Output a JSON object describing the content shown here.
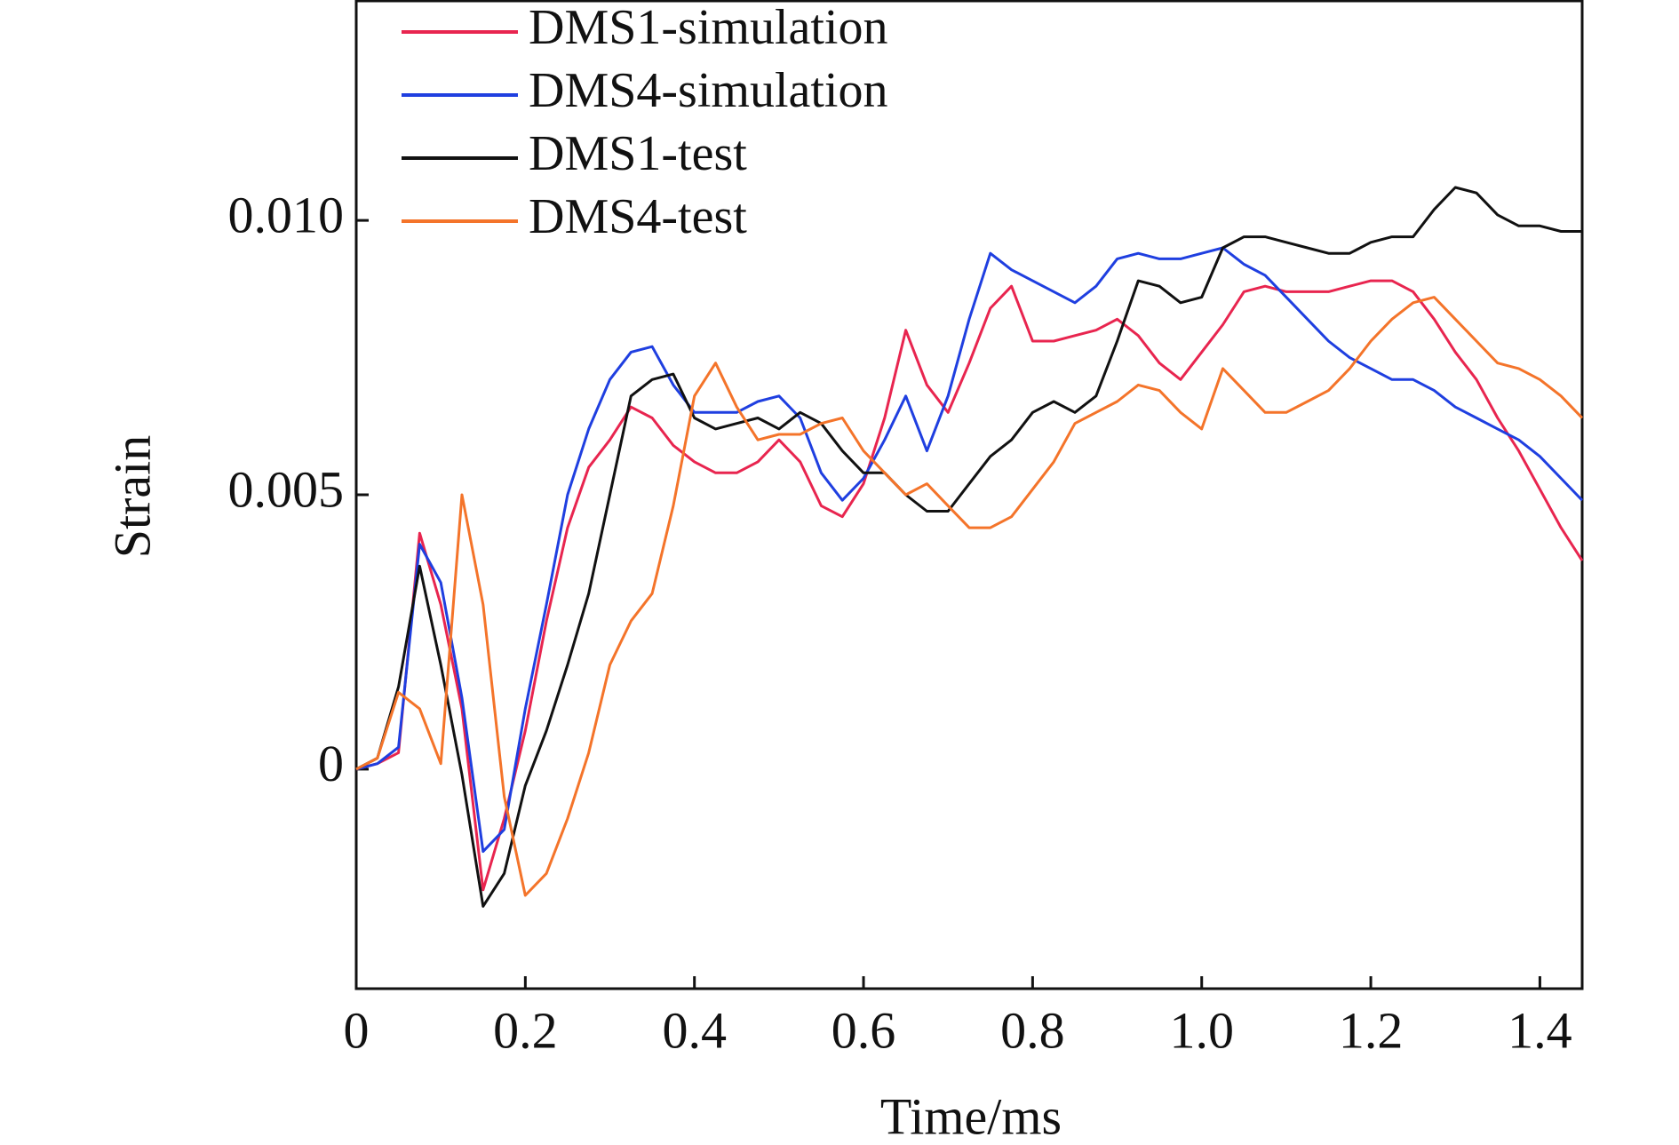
{
  "chart_data": {
    "type": "line",
    "x_label": "Time/ms",
    "y_label": "Strain",
    "x": [
      0,
      0.025,
      0.05,
      0.075,
      0.1,
      0.125,
      0.15,
      0.175,
      0.2,
      0.225,
      0.25,
      0.275,
      0.3,
      0.325,
      0.35,
      0.375,
      0.4,
      0.425,
      0.45,
      0.475,
      0.5,
      0.525,
      0.55,
      0.575,
      0.6,
      0.625,
      0.65,
      0.675,
      0.7,
      0.725,
      0.75,
      0.775,
      0.8,
      0.825,
      0.85,
      0.875,
      0.9,
      0.925,
      0.95,
      0.975,
      1.0,
      1.025,
      1.05,
      1.075,
      1.1,
      1.125,
      1.15,
      1.175,
      1.2,
      1.225,
      1.25,
      1.275,
      1.3,
      1.325,
      1.35,
      1.375,
      1.4,
      1.425,
      1.45
    ],
    "series": [
      {
        "name": "DMS1-simulation",
        "color": "#e8254f",
        "values": [
          0,
          0.0001,
          0.0003,
          0.0043,
          0.003,
          0.0011,
          -0.0022,
          -0.0009,
          0.0007,
          0.0027,
          0.0044,
          0.0055,
          0.006,
          0.0066,
          0.0064,
          0.0059,
          0.0056,
          0.0054,
          0.0054,
          0.0056,
          0.006,
          0.0056,
          0.0048,
          0.0046,
          0.0052,
          0.0064,
          0.008,
          0.007,
          0.0065,
          0.0074,
          0.0084,
          0.0088,
          0.0078,
          0.0078,
          0.0079,
          0.008,
          0.0082,
          0.0079,
          0.0074,
          0.0071,
          0.0076,
          0.0081,
          0.0087,
          0.0088,
          0.0087,
          0.0087,
          0.0087,
          0.0088,
          0.0089,
          0.0089,
          0.0087,
          0.0082,
          0.0076,
          0.0071,
          0.0064,
          0.0058,
          0.0051,
          0.0044,
          0.0038
        ]
      },
      {
        "name": "DMS4-simulation",
        "color": "#1f3fe0",
        "values": [
          0,
          0.0001,
          0.0004,
          0.0041,
          0.0034,
          0.0013,
          -0.0015,
          -0.0011,
          0.0011,
          0.003,
          0.005,
          0.0062,
          0.0071,
          0.0076,
          0.0077,
          0.007,
          0.0065,
          0.0065,
          0.0065,
          0.0067,
          0.0068,
          0.0064,
          0.0054,
          0.0049,
          0.0053,
          0.006,
          0.0068,
          0.0058,
          0.0068,
          0.0082,
          0.0094,
          0.0091,
          0.0089,
          0.0087,
          0.0085,
          0.0088,
          0.0093,
          0.0094,
          0.0093,
          0.0093,
          0.0094,
          0.0095,
          0.0092,
          0.009,
          0.0086,
          0.0082,
          0.0078,
          0.0075,
          0.0073,
          0.0071,
          0.0071,
          0.0069,
          0.0066,
          0.0064,
          0.0062,
          0.006,
          0.0057,
          0.0053,
          0.0049
        ]
      },
      {
        "name": "DMS1-test",
        "color": "#111111",
        "values": [
          0,
          0.0002,
          0.0015,
          0.0037,
          0.0019,
          -0.0001,
          -0.0025,
          -0.0019,
          -0.0003,
          0.0007,
          0.0019,
          0.0032,
          0.005,
          0.0068,
          0.0071,
          0.0072,
          0.0064,
          0.0062,
          0.0063,
          0.0064,
          0.0062,
          0.0065,
          0.0063,
          0.0058,
          0.0054,
          0.0054,
          0.005,
          0.0047,
          0.0047,
          0.0052,
          0.0057,
          0.006,
          0.0065,
          0.0067,
          0.0065,
          0.0068,
          0.0078,
          0.0089,
          0.0088,
          0.0085,
          0.0086,
          0.0095,
          0.0097,
          0.0097,
          0.0096,
          0.0095,
          0.0094,
          0.0094,
          0.0096,
          0.0097,
          0.0097,
          0.0102,
          0.0106,
          0.0105,
          0.0101,
          0.0099,
          0.0099,
          0.0098,
          0.0098
        ]
      },
      {
        "name": "DMS4-test",
        "color": "#f4742a",
        "values": [
          0,
          0.0002,
          0.0014,
          0.0011,
          0.0001,
          0.005,
          0.003,
          -0.0005,
          -0.0023,
          -0.0019,
          -0.0009,
          0.0003,
          0.0019,
          0.0027,
          0.0032,
          0.0048,
          0.0068,
          0.0074,
          0.0066,
          0.006,
          0.0061,
          0.0061,
          0.0063,
          0.0064,
          0.0058,
          0.0054,
          0.005,
          0.0052,
          0.0048,
          0.0044,
          0.0044,
          0.0046,
          0.0051,
          0.0056,
          0.0063,
          0.0065,
          0.0067,
          0.007,
          0.0069,
          0.0065,
          0.0062,
          0.0073,
          0.0069,
          0.0065,
          0.0065,
          0.0067,
          0.0069,
          0.0073,
          0.0078,
          0.0082,
          0.0085,
          0.0086,
          0.0082,
          0.0078,
          0.0074,
          0.0073,
          0.0071,
          0.0068,
          0.0064
        ]
      }
    ],
    "xlim": [
      0,
      1.45
    ],
    "ylim": [
      -0.004,
      0.014
    ],
    "xticks": [
      0,
      0.2,
      0.4,
      0.6,
      0.8,
      {
        "value": 1,
        "label": "1.0"
      },
      1.2,
      1.4
    ],
    "yticks": [
      0,
      0.005,
      {
        "value": 0.01,
        "label": "0.010"
      }
    ],
    "legend": "upper left",
    "grid": false
  }
}
